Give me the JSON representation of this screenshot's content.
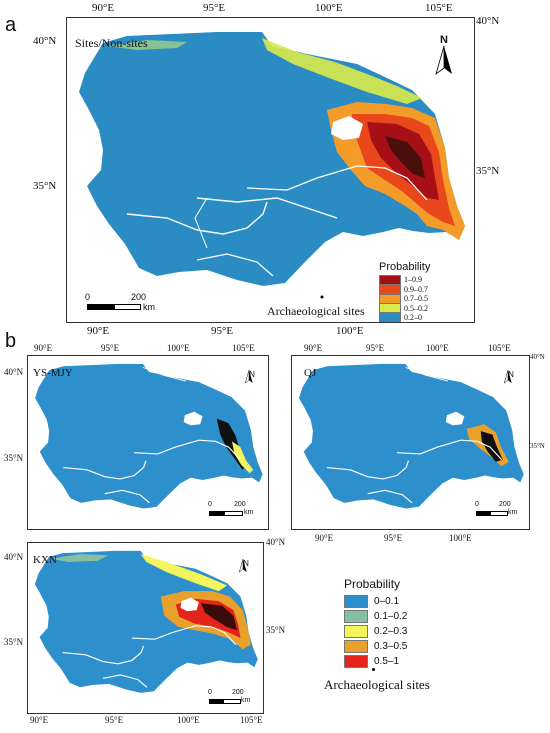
{
  "panel_a": {
    "letter": "a",
    "title": "Sites/Non-sites",
    "top_ticks": [
      "90°E",
      "95°E",
      "100°E",
      "105°E"
    ],
    "bottom_ticks": [
      "90°E",
      "95°E",
      "100°E"
    ],
    "left_ticks": [
      "40°N",
      "35°N"
    ],
    "right_ticks": [
      "40°N",
      "35°N"
    ],
    "north": "N",
    "scale": {
      "zero": "0",
      "max": "200",
      "unit": "km"
    },
    "legend": {
      "title": "Probability",
      "items": [
        {
          "label": "1–0.9",
          "color": "#a50f15"
        },
        {
          "label": "0.9–0.7",
          "color": "#e8481c"
        },
        {
          "label": "0.7–0.5",
          "color": "#f39c2a"
        },
        {
          "label": "0.5–0.2",
          "color": "#d9ea4a"
        },
        {
          "label": "0.2–0",
          "color": "#2b8cc4"
        }
      ]
    },
    "sites_label": "Archaeological sites"
  },
  "panel_b": {
    "letter": "b",
    "maps": [
      {
        "title": "YS-MJY",
        "top_ticks": [
          "90°E",
          "95°E",
          "100°E",
          "105°E"
        ],
        "left_ticks": [
          "40°N",
          "35°N"
        ],
        "right_ticks": [],
        "bottom_ticks": []
      },
      {
        "title": "QJ",
        "top_ticks": [
          "90°E",
          "95°E",
          "100°E",
          "105°E"
        ],
        "left_ticks": [],
        "right_ticks": [
          "40°N",
          "35°N"
        ],
        "bottom_ticks": [
          "90°E",
          "95°E",
          "100°E"
        ]
      },
      {
        "title": "KXN",
        "top_ticks": [],
        "left_ticks": [
          "40°N",
          "35°N"
        ],
        "right_ticks": [
          "40°N",
          "35°N"
        ],
        "bottom_ticks": [
          "90°E",
          "95°E",
          "100°E",
          "105°E"
        ]
      }
    ],
    "north": "N",
    "scale": {
      "zero": "0",
      "max": "200",
      "unit": "km"
    },
    "legend": {
      "title": "Probability",
      "items": [
        {
          "label": "0–0.1",
          "color": "#2e8fcd"
        },
        {
          "label": "0.1–0.2",
          "color": "#86c0a3"
        },
        {
          "label": "0.2–0.3",
          "color": "#f4f45c"
        },
        {
          "label": "0.3–0.5",
          "color": "#e9a12c"
        },
        {
          "label": "0.5–1",
          "color": "#e4231b"
        }
      ]
    },
    "sites_label": "Archaeological sites"
  },
  "colors": {
    "base": "#2b8cc4",
    "river": "#ffffff",
    "very_high": "#4a0f0b",
    "high": "#a50f15",
    "mid": "#e8481c",
    "low": "#f39c2a",
    "lower": "#d9ea4a",
    "light_green": "#9fd08a"
  }
}
